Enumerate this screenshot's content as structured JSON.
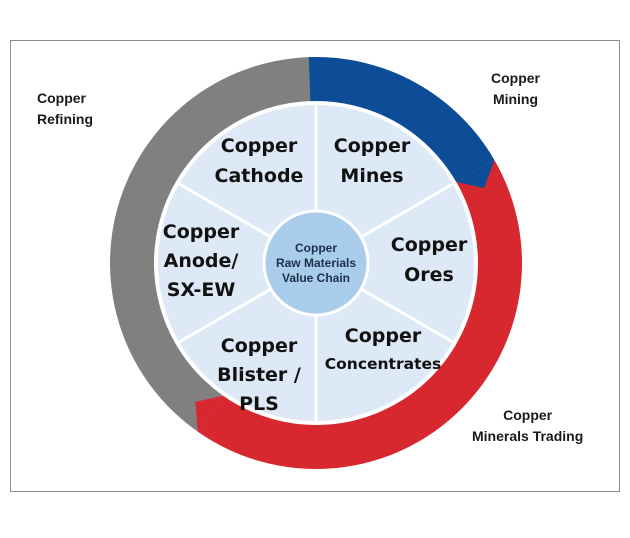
{
  "colors": {
    "mining": "#0d4d97",
    "trading": "#d8282f",
    "refining": "#808080",
    "segment_fill": "#dde9f6",
    "center_fill": "#a9ccea",
    "divider": "#ffffff"
  },
  "outer_labels": {
    "refining": [
      "Copper",
      "Refining"
    ],
    "mining": [
      "Copper",
      "Mining"
    ],
    "trading": [
      "Copper",
      "Minerals Trading"
    ]
  },
  "center": [
    "Copper",
    "Raw Materials",
    "Value Chain"
  ],
  "segments": [
    {
      "lines": [
        "Copper",
        "Mines"
      ]
    },
    {
      "lines": [
        "Copper",
        "Ores"
      ]
    },
    {
      "lines": [
        "Copper",
        "Concentrates"
      ]
    },
    {
      "lines": [
        "Copper",
        "Blister /",
        "PLS"
      ]
    },
    {
      "lines": [
        "Copper",
        "Anode/",
        "SX-EW"
      ]
    },
    {
      "lines": [
        "Copper",
        "Cathode"
      ]
    }
  ]
}
